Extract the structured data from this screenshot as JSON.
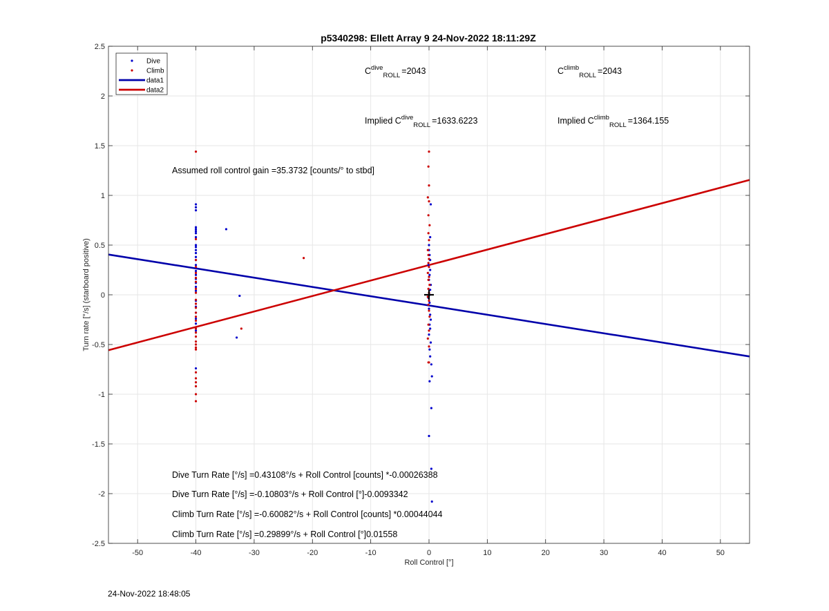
{
  "chart_data": {
    "type": "scatter",
    "title": "p5340298: Ellett Array 9 24-Nov-2022 18:11:29Z",
    "xlabel": "Roll Control [°]",
    "ylabel": "Turn rate [°/s] (starboard positive)",
    "xlim": [
      -55,
      55
    ],
    "ylim": [
      -2.5,
      2.5
    ],
    "xticks": [
      -50,
      -40,
      -30,
      -20,
      -10,
      0,
      10,
      20,
      30,
      40,
      50
    ],
    "xtick_labels": [
      "-50",
      "-40",
      "-30",
      "-20",
      "-10",
      "0",
      "10",
      "20",
      "30",
      "40",
      "50"
    ],
    "yticks": [
      2.5,
      2,
      1.5,
      1,
      0.5,
      0,
      -0.5,
      -1,
      -1.5,
      -2,
      -2.5
    ],
    "ytick_labels": [
      "2.5",
      "2",
      "1.5",
      "1",
      "0.5",
      "0",
      "-0.5",
      "-1",
      "-1.5",
      "-2",
      "-2.5"
    ],
    "grid": true,
    "legend_placement": "top-left",
    "legend": [
      {
        "label": "Dive",
        "kind": "marker",
        "color": "#0000cc"
      },
      {
        "label": "Climb",
        "kind": "marker",
        "color": "#cc0000"
      },
      {
        "label": "data1",
        "kind": "line",
        "color": "#0000aa"
      },
      {
        "label": "data2",
        "kind": "line",
        "color": "#cc0000"
      }
    ],
    "series": [
      {
        "name": "Dive",
        "kind": "scatter",
        "color": "#0000cc",
        "points": [
          [
            -40,
            0.91
          ],
          [
            -40,
            0.88
          ],
          [
            -40,
            0.85
          ],
          [
            -40,
            0.68
          ],
          [
            -40,
            0.66
          ],
          [
            -40,
            0.64
          ],
          [
            -40,
            0.62
          ],
          [
            -40,
            0.58
          ],
          [
            -40,
            0.5
          ],
          [
            -40,
            0.48
          ],
          [
            -40,
            0.45
          ],
          [
            -40,
            0.42
          ],
          [
            -40,
            0.38
          ],
          [
            -40,
            0.35
          ],
          [
            -40,
            0.3
          ],
          [
            -40,
            0.27
          ],
          [
            -40,
            0.24
          ],
          [
            -40,
            0.2
          ],
          [
            -40,
            0.16
          ],
          [
            -40,
            0.12
          ],
          [
            -40,
            0.08
          ],
          [
            -40,
            0.04
          ],
          [
            -40,
            -0.06
          ],
          [
            -40,
            -0.12
          ],
          [
            -40,
            -0.18
          ],
          [
            -40,
            -0.24
          ],
          [
            -40,
            -0.29
          ],
          [
            -40,
            -0.36
          ],
          [
            -40,
            -0.74
          ],
          [
            -34.8,
            0.66
          ],
          [
            -32.5,
            -0.01
          ],
          [
            -33,
            -0.43
          ],
          [
            0.3,
            0.91
          ],
          [
            0.2,
            0.58
          ],
          [
            0,
            0.5
          ],
          [
            0,
            0.45
          ],
          [
            0.1,
            0.4
          ],
          [
            0.2,
            0.35
          ],
          [
            -0.1,
            0.3
          ],
          [
            0.2,
            0.25
          ],
          [
            0.1,
            0.2
          ],
          [
            0,
            0.15
          ],
          [
            0.3,
            0.1
          ],
          [
            0.2,
            0.05
          ],
          [
            0.1,
            0.0
          ],
          [
            -0.1,
            -0.03
          ],
          [
            0.1,
            -0.08
          ],
          [
            0,
            -0.14
          ],
          [
            0.2,
            -0.2
          ],
          [
            0.3,
            -0.25
          ],
          [
            0.1,
            -0.3
          ],
          [
            0.2,
            -0.34
          ],
          [
            0,
            -0.4
          ],
          [
            0.3,
            -0.48
          ],
          [
            0.1,
            -0.55
          ],
          [
            0.2,
            -0.62
          ],
          [
            0.4,
            -0.7
          ],
          [
            0.5,
            -0.82
          ],
          [
            0.1,
            -0.87
          ],
          [
            0.4,
            -1.14
          ],
          [
            0,
            -1.42
          ],
          [
            0.4,
            -1.75
          ],
          [
            0.5,
            -2.08
          ]
        ]
      },
      {
        "name": "Climb",
        "kind": "scatter",
        "color": "#cc0000",
        "points": [
          [
            -40,
            1.44
          ],
          [
            -40,
            0.56
          ],
          [
            -40,
            0.35
          ],
          [
            -40,
            0.28
          ],
          [
            -40,
            0.22
          ],
          [
            -40,
            0.17
          ],
          [
            -40,
            0.13
          ],
          [
            -40,
            0.06
          ],
          [
            -40,
            0.02
          ],
          [
            -40,
            -0.05
          ],
          [
            -40,
            -0.09
          ],
          [
            -40,
            -0.13
          ],
          [
            -40,
            -0.18
          ],
          [
            -40,
            -0.22
          ],
          [
            -40,
            -0.26
          ],
          [
            -40,
            -0.34
          ],
          [
            -40,
            -0.38
          ],
          [
            -40,
            -0.42
          ],
          [
            -40,
            -0.47
          ],
          [
            -40,
            -0.5
          ],
          [
            -40,
            -0.53
          ],
          [
            -40,
            -0.55
          ],
          [
            -40,
            -0.78
          ],
          [
            -40,
            -0.84
          ],
          [
            -40,
            -0.88
          ],
          [
            -40,
            -0.92
          ],
          [
            -40,
            -1.0
          ],
          [
            -40,
            -1.07
          ],
          [
            -21.5,
            0.37
          ],
          [
            -32.2,
            -0.34
          ],
          [
            0,
            1.44
          ],
          [
            -0.1,
            1.29
          ],
          [
            0,
            1.1
          ],
          [
            -0.2,
            0.98
          ],
          [
            0,
            0.94
          ],
          [
            -0.1,
            0.8
          ],
          [
            0.1,
            0.7
          ],
          [
            -0.1,
            0.62
          ],
          [
            0,
            0.55
          ],
          [
            -0.2,
            0.45
          ],
          [
            -0.1,
            0.4
          ],
          [
            0,
            0.36
          ],
          [
            -0.1,
            0.32
          ],
          [
            0,
            0.28
          ],
          [
            -0.2,
            0.22
          ],
          [
            0,
            0.18
          ],
          [
            -0.1,
            0.15
          ],
          [
            0.1,
            0.1
          ],
          [
            -0.1,
            0.06
          ],
          [
            0,
            0.02
          ],
          [
            -0.2,
            -0.02
          ],
          [
            0,
            -0.06
          ],
          [
            -0.1,
            -0.1
          ],
          [
            0,
            -0.16
          ],
          [
            0.1,
            -0.22
          ],
          [
            -0.1,
            -0.3
          ],
          [
            0,
            -0.36
          ],
          [
            -0.2,
            -0.44
          ],
          [
            0,
            -0.52
          ],
          [
            -0.1,
            -0.68
          ],
          [
            0,
            -0.68
          ]
        ]
      },
      {
        "name": "data1",
        "kind": "line",
        "color": "#0000aa",
        "points": [
          [
            -55,
            0.405
          ],
          [
            55,
            -0.62
          ]
        ]
      },
      {
        "name": "data2",
        "kind": "line",
        "color": "#cc0000",
        "points": [
          [
            -55,
            -0.557
          ],
          [
            55,
            1.155
          ]
        ]
      }
    ],
    "marker": {
      "x": 0,
      "y": 0,
      "symbol": "+",
      "color": "#000000"
    },
    "annotations": {
      "c_dive": {
        "prefix": "C",
        "sup": "dive",
        "sub": "ROLL",
        "suffix": "=2043"
      },
      "c_climb": {
        "prefix": "C",
        "sup": "climb",
        "sub": "ROLL",
        "suffix": "=2043"
      },
      "implied_dive": {
        "prefix": "Implied C",
        "sup": "dive",
        "sub": "ROLL",
        "suffix": "=1633.6223"
      },
      "implied_climb": {
        "prefix": "Implied C",
        "sup": "climb",
        "sub": "ROLL",
        "suffix": "=1364.155"
      },
      "gain": "Assumed roll control gain =35.3732 [counts/° to stbd]",
      "eq1": "Dive Turn Rate [°/s] =0.43108°/s + Roll Control [counts] *-0.00026388",
      "eq2": "Dive Turn Rate [°/s] =-0.10803°/s + Roll Control [°]-0.0093342",
      "eq3": "Climb Turn Rate [°/s] =-0.60082°/s + Roll Control [counts] *0.00044044",
      "eq4": "Climb Turn Rate [°/s] =0.29899°/s + Roll Control [°]0.01558"
    }
  },
  "footer": {
    "timestamp": "24-Nov-2022 18:48:05"
  }
}
